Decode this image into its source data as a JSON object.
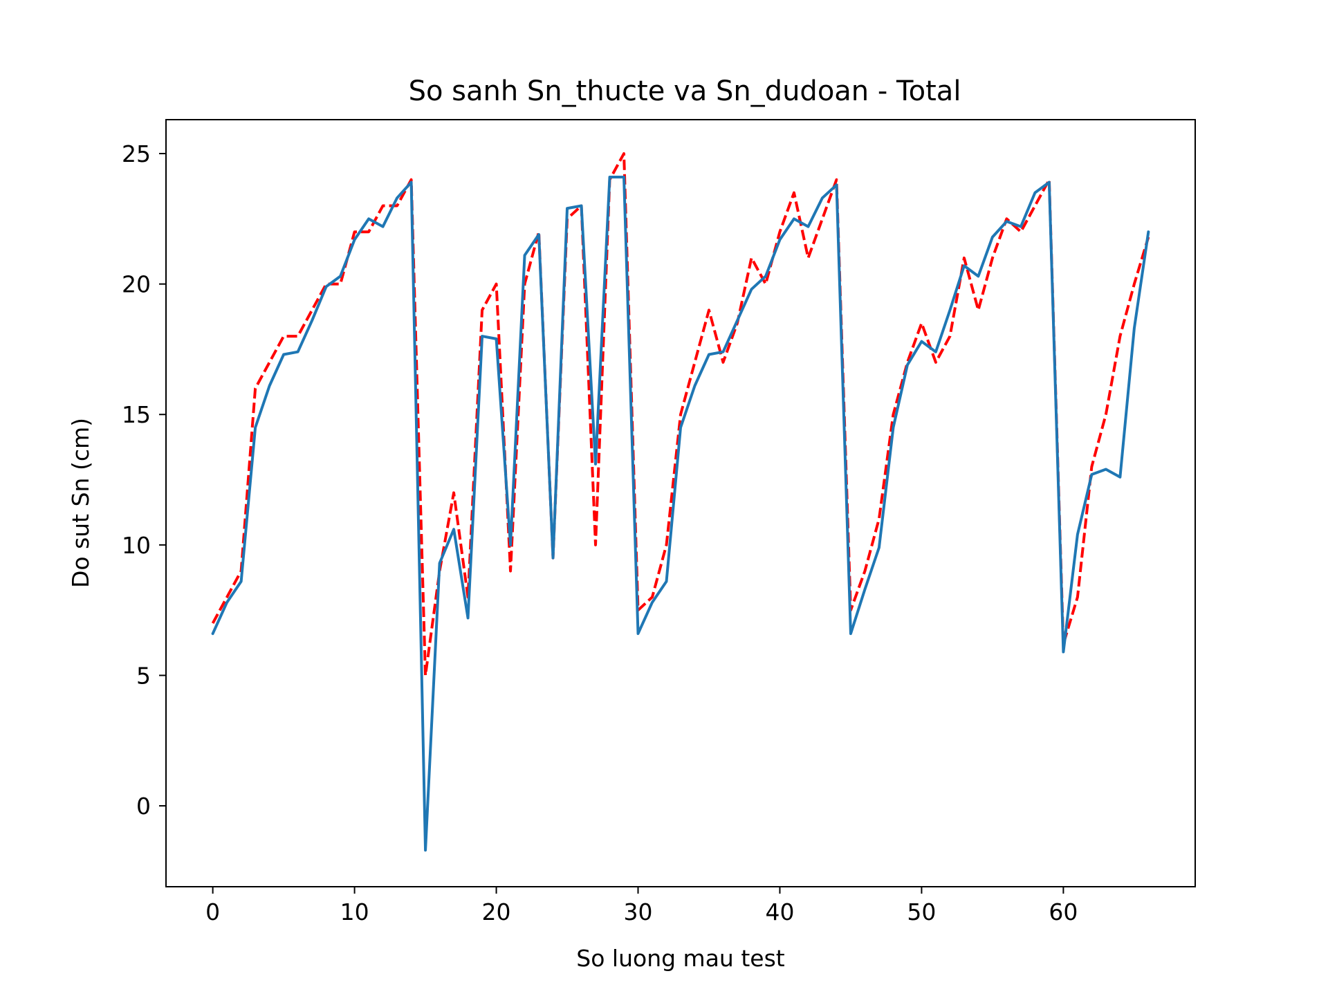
{
  "chart_data": {
    "type": "line",
    "title": "So sanh Sn_thucte va Sn_dudoan - Total",
    "xlabel": "So luong mau test",
    "ylabel": "Do sut Sn (cm)",
    "xlim": [
      -3.3,
      69.3
    ],
    "ylim": [
      -3.1,
      26.3
    ],
    "xticks": [
      0,
      10,
      20,
      30,
      40,
      50,
      60
    ],
    "yticks": [
      0,
      5,
      10,
      15,
      20,
      25
    ],
    "grid": false,
    "series": [
      {
        "color": "#ff0000",
        "style": "dashed",
        "values": [
          7.0,
          8.0,
          9.0,
          16.0,
          17.0,
          18.0,
          18.0,
          19.0,
          20.0,
          20.0,
          22.0,
          22.0,
          23.0,
          23.0,
          24.0,
          5.0,
          9.0,
          12.0,
          8.0,
          19.0,
          20.0,
          9.0,
          20.0,
          22.0,
          9.5,
          22.5,
          23.0,
          10.0,
          24.0,
          25.0,
          7.5,
          8.0,
          10.0,
          15.0,
          17.0,
          19.0,
          17.0,
          18.5,
          21.0,
          20.0,
          22.0,
          23.5,
          21.0,
          22.5,
          24.0,
          7.5,
          9.0,
          11.0,
          15.0,
          17.0,
          18.5,
          17.0,
          18.0,
          21.0,
          19.0,
          21.0,
          22.5,
          22.0,
          23.0,
          24.0,
          6.2,
          8.0,
          13.0,
          15.0,
          18.0,
          20.0,
          21.8
        ]
      },
      {
        "color": "#1f77b4",
        "style": "solid",
        "values": [
          6.6,
          7.8,
          8.6,
          14.5,
          16.1,
          17.3,
          17.4,
          18.6,
          19.9,
          20.3,
          21.7,
          22.5,
          22.2,
          23.3,
          23.9,
          -1.7,
          9.3,
          10.6,
          7.2,
          18.0,
          17.9,
          10.0,
          21.1,
          21.9,
          9.5,
          22.9,
          23.0,
          13.1,
          24.1,
          24.1,
          6.6,
          7.8,
          8.6,
          14.5,
          16.1,
          17.3,
          17.4,
          18.6,
          19.8,
          20.3,
          21.7,
          22.5,
          22.2,
          23.3,
          23.8,
          6.6,
          8.3,
          9.9,
          14.5,
          16.9,
          17.8,
          17.4,
          19.0,
          20.7,
          20.3,
          21.8,
          22.4,
          22.2,
          23.5,
          23.9,
          5.9,
          10.4,
          12.7,
          12.9,
          12.6,
          18.3,
          22.0
        ]
      }
    ]
  }
}
